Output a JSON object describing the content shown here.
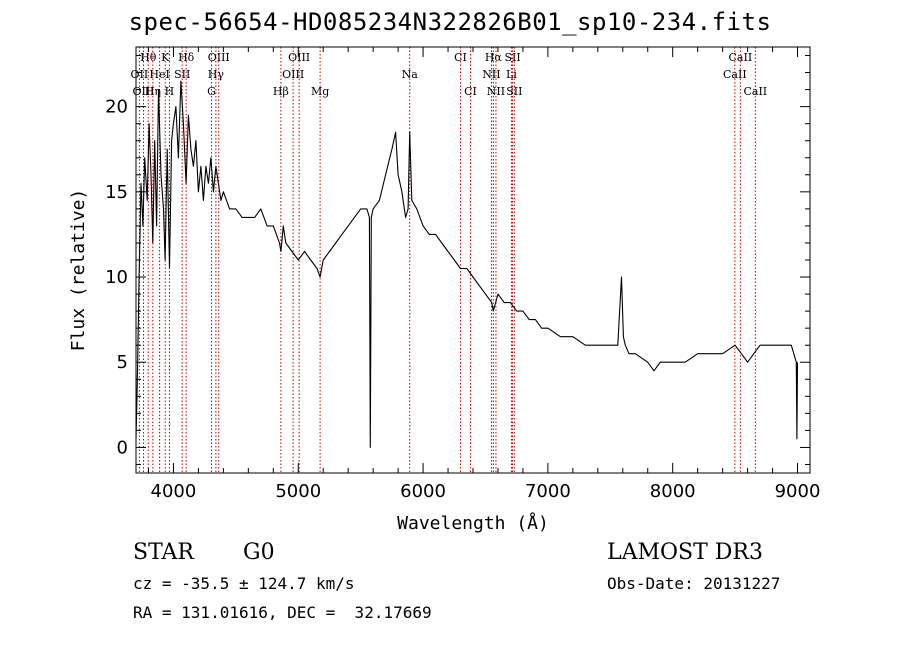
{
  "chart_data": {
    "type": "line",
    "title": "spec-56654-HD085234N322826B01_sp10-234.fits",
    "xlabel": "Wavelength (Å)",
    "ylabel": "Flux (relative)",
    "xlim": [
      3700,
      9100
    ],
    "ylim": [
      -1.5,
      23.5
    ],
    "xticks": [
      4000,
      5000,
      6000,
      7000,
      8000,
      9000
    ],
    "yticks": [
      0,
      5,
      10,
      15,
      20
    ],
    "xtick_labels": [
      "4000",
      "5000",
      "6000",
      "7000",
      "8000",
      "9000"
    ],
    "ytick_labels": [
      "0",
      "5",
      "10",
      "15",
      "20"
    ],
    "grid": false,
    "series": [
      {
        "x": [
          3700,
          3710,
          3725,
          3740,
          3755,
          3770,
          3790,
          3805,
          3820,
          3835,
          3850,
          3865,
          3880,
          3900,
          3920,
          3933,
          3950,
          3968,
          3985,
          4000,
          4020,
          4040,
          4060,
          4080,
          4101,
          4120,
          4140,
          4160,
          4180,
          4200,
          4220,
          4240,
          4260,
          4280,
          4300,
          4320,
          4340,
          4360,
          4380,
          4400,
          4450,
          4500,
          4550,
          4600,
          4650,
          4700,
          4750,
          4800,
          4850,
          4861,
          4880,
          4900,
          4950,
          5000,
          5050,
          5100,
          5150,
          5175,
          5200,
          5250,
          5300,
          5350,
          5400,
          5450,
          5500,
          5550,
          5570,
          5577,
          5585,
          5600,
          5650,
          5700,
          5750,
          5780,
          5800,
          5830,
          5860,
          5880,
          5893,
          5910,
          5950,
          6000,
          6050,
          6100,
          6150,
          6200,
          6250,
          6300,
          6350,
          6400,
          6450,
          6500,
          6550,
          6563,
          6600,
          6650,
          6700,
          6750,
          6800,
          6850,
          6900,
          6950,
          7000,
          7100,
          7200,
          7300,
          7400,
          7500,
          7560,
          7590,
          7605,
          7620,
          7650,
          7700,
          7800,
          7850,
          7900,
          8000,
          8100,
          8200,
          8300,
          8400,
          8500,
          8550,
          8600,
          8650,
          8700,
          8800,
          8900,
          8950,
          8990,
          8995,
          9000
        ],
        "y": [
          0.5,
          3.5,
          10,
          15.5,
          13,
          17,
          14.5,
          19,
          16,
          12,
          18,
          13,
          21,
          16,
          14,
          11,
          17.5,
          10.5,
          18,
          19,
          20,
          17,
          21.5,
          19,
          15.5,
          19.5,
          17.5,
          16.5,
          18,
          15,
          16.5,
          14.5,
          16.5,
          15.5,
          17,
          15,
          16.5,
          15.5,
          14.5,
          15,
          14,
          14,
          13.5,
          13.5,
          13.5,
          14,
          13,
          13,
          12,
          11.5,
          13,
          12,
          11.5,
          11,
          11.5,
          11,
          10.5,
          10,
          11,
          11.5,
          12,
          12.5,
          13,
          13.5,
          14,
          14,
          13.5,
          0,
          13.5,
          14,
          14.5,
          16,
          17.5,
          18.5,
          16,
          15,
          13.5,
          14,
          18.5,
          14.5,
          14,
          13,
          12.5,
          12.5,
          12,
          11.5,
          11,
          10.5,
          10.5,
          10,
          9.5,
          9,
          8.5,
          8,
          9,
          8.5,
          8.5,
          8,
          8,
          7.5,
          7.5,
          7,
          7,
          6.5,
          6.5,
          6,
          6,
          6,
          6,
          10,
          6.5,
          6,
          5.5,
          5.5,
          5,
          4.5,
          5,
          5,
          5,
          5.5,
          5.5,
          5.5,
          6,
          5.5,
          5,
          5.5,
          6,
          6,
          6,
          6,
          5,
          0.5,
          5
        ]
      }
    ],
    "line_markers": [
      {
        "label": "Hθ",
        "wl": 3798,
        "row": 0
      },
      {
        "label": "K",
        "wl": 3934,
        "row": 0
      },
      {
        "label": "Hδ",
        "wl": 4102,
        "row": 0
      },
      {
        "label": "OIII",
        "wl": 4363,
        "row": 0
      },
      {
        "label": "OIII",
        "wl": 5007,
        "row": 0
      },
      {
        "label": "CI",
        "wl": 6300,
        "row": 0
      },
      {
        "label": "Hα",
        "wl": 6563,
        "row": 0
      },
      {
        "label": "SII",
        "wl": 6717,
        "row": 0
      },
      {
        "label": "CaII",
        "wl": 8542,
        "row": 0
      },
      {
        "label": "OII",
        "wl": 3727,
        "row": 1
      },
      {
        "label": "HeI",
        "wl": 3889,
        "row": 1
      },
      {
        "label": "SII",
        "wl": 4070,
        "row": 1
      },
      {
        "label": "Hγ",
        "wl": 4340,
        "row": 1
      },
      {
        "label": "OIII",
        "wl": 4959,
        "row": 1
      },
      {
        "label": "Na",
        "wl": 5893,
        "row": 1
      },
      {
        "label": "NII",
        "wl": 6548,
        "row": 1
      },
      {
        "label": "Li",
        "wl": 6708,
        "row": 1
      },
      {
        "label": "CaII",
        "wl": 8498,
        "row": 1
      },
      {
        "label": "OIII",
        "wl": 3760,
        "row": 2
      },
      {
        "label": "Hη",
        "wl": 3835,
        "row": 2
      },
      {
        "label": "H",
        "wl": 3968,
        "row": 2
      },
      {
        "label": "G",
        "wl": 4305,
        "row": 2
      },
      {
        "label": "Hβ",
        "wl": 4861,
        "row": 2
      },
      {
        "label": "Mg",
        "wl": 5175,
        "row": 2
      },
      {
        "label": "CI",
        "wl": 6380,
        "row": 2
      },
      {
        "label": "NII",
        "wl": 6584,
        "row": 2
      },
      {
        "label": "SII",
        "wl": 6731,
        "row": 2
      },
      {
        "label": "CaII",
        "wl": 8662,
        "row": 2
      }
    ]
  },
  "info": {
    "class_label": "STAR",
    "subclass": "G0",
    "survey": "LAMOST DR3",
    "cz": "cz = -35.5 ± 124.7 km/s",
    "obs_date": "Obs-Date: 20131227",
    "coords": "RA = 131.01616, DEC =  32.17669"
  }
}
